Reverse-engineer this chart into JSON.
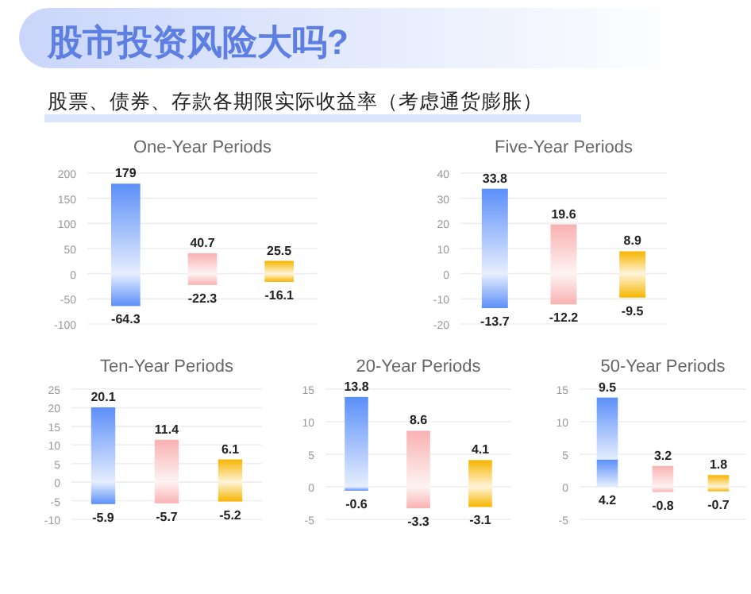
{
  "chart_data": [
    {
      "type": "other",
      "title": "股市投资风险大吗?",
      "subtitle": "股票、债券、存款各期限实际收益率（考虑通货膨胀）"
    },
    {
      "type": "bar",
      "title": "One-Year Periods",
      "categories": [
        null,
        null,
        null
      ],
      "stacked": true,
      "data_labels": true,
      "grid": "y",
      "ylim": [
        -100,
        200
      ],
      "yticks": [
        -100,
        -50,
        0,
        50,
        100,
        150,
        200
      ],
      "series": [
        {
          "colors": [
            "#5b8ff9",
            "#f9b1b1",
            "#f7b500"
          ],
          "values": [
            -64.3,
            -22.3,
            -16.1
          ]
        },
        {
          "colors": [
            "#5b8ff9",
            "#f9b1b1",
            "#f7b500"
          ],
          "values": [
            179,
            40.7,
            25.5
          ]
        }
      ]
    },
    {
      "type": "bar",
      "title": "Five-Year Periods",
      "categories": [
        null,
        null,
        null
      ],
      "stacked": true,
      "data_labels": true,
      "grid": "y",
      "ylim": [
        -20,
        40
      ],
      "yticks": [
        -20,
        -10,
        0,
        10,
        20,
        30,
        40
      ],
      "series": [
        {
          "colors": [
            "#5b8ff9",
            "#f9b1b1",
            "#f7b500"
          ],
          "values": [
            -13.7,
            -12.2,
            -9.5
          ]
        },
        {
          "colors": [
            "#5b8ff9",
            "#f9b1b1",
            "#f7b500"
          ],
          "values": [
            33.8,
            19.6,
            8.9
          ]
        }
      ]
    },
    {
      "type": "bar",
      "title": "Ten-Year Periods",
      "categories": [
        null,
        null,
        null
      ],
      "stacked": true,
      "data_labels": true,
      "grid": "y",
      "ylim": [
        -10,
        25
      ],
      "yticks": [
        -10,
        -5,
        0,
        5,
        10,
        15,
        20,
        25
      ],
      "series": [
        {
          "colors": [
            "#5b8ff9",
            "#f9b1b1",
            "#f7b500"
          ],
          "values": [
            -5.9,
            -5.7,
            -5.2
          ]
        },
        {
          "colors": [
            "#5b8ff9",
            "#f9b1b1",
            "#f7b500"
          ],
          "values": [
            20.1,
            11.4,
            6.1
          ]
        }
      ]
    },
    {
      "type": "bar",
      "title": "20-Year Periods",
      "categories": [
        null,
        null,
        null
      ],
      "stacked": true,
      "data_labels": true,
      "grid": "y",
      "ylim": [
        -5,
        15
      ],
      "yticks": [
        -5,
        0,
        5,
        10,
        15
      ],
      "series": [
        {
          "colors": [
            "#5b8ff9",
            "#f9b1b1",
            "#f7b500"
          ],
          "values": [
            -0.6,
            -3.3,
            -3.1
          ]
        },
        {
          "colors": [
            "#5b8ff9",
            "#f9b1b1",
            "#f7b500"
          ],
          "values": [
            13.8,
            8.6,
            4.1
          ]
        }
      ]
    },
    {
      "type": "bar",
      "title": "50-Year Periods",
      "categories": [
        null,
        null,
        null
      ],
      "stacked": true,
      "data_labels": true,
      "grid": "y",
      "ylim": [
        -5,
        15
      ],
      "yticks": [
        -5,
        0,
        5,
        10,
        15
      ],
      "series": [
        {
          "colors": [
            "#5b8ff9",
            "#f9b1b1",
            "#f7b500"
          ],
          "values": [
            4.2,
            -0.8,
            -0.7
          ]
        },
        {
          "colors": [
            "#5b8ff9",
            "#f9b1b1",
            "#f7b500"
          ],
          "values": [
            9.5,
            3.2,
            1.8
          ]
        }
      ]
    }
  ]
}
